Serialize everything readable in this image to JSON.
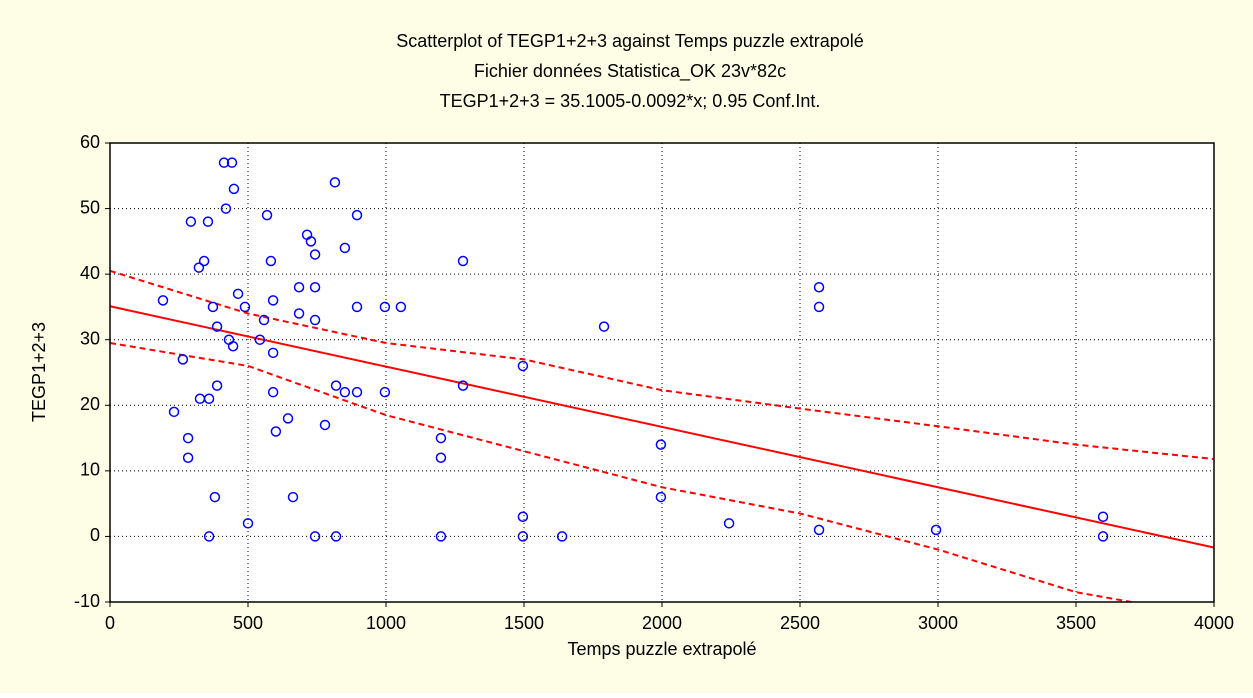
{
  "chart_data": {
    "type": "scatter",
    "title": "Scatterplot of TEGP1+2+3 against Temps puzzle extrapolé",
    "subtitle": "Fichier données Statistica_OK 23v*82c",
    "annotation": "TEGP1+2+3 = 35.1005-0.0092*x; 0.95 Conf.Int.",
    "x_label": "Temps puzzle extrapolé",
    "y_label": "TEGP1+2+3",
    "color": "#0000ff",
    "x": [
      192,
      232,
      264,
      283,
      283,
      293,
      322,
      326,
      341,
      355,
      359,
      359,
      373,
      380,
      388,
      388,
      413,
      420,
      431,
      442,
      446,
      449,
      464,
      489,
      500,
      543,
      558,
      569,
      583,
      591,
      591,
      591,
      601,
      645,
      663,
      685,
      685,
      714,
      728,
      743,
      743,
      743,
      743,
      779,
      815,
      819,
      819,
      851,
      851,
      895,
      895,
      895,
      996,
      996,
      1054,
      1199,
      1199,
      1199,
      1279,
      1279,
      1496,
      1496,
      1496,
      1638,
      1790,
      1996,
      1996,
      2243,
      2569,
      2569,
      2569,
      2993,
      3598,
      3598
    ],
    "values": [
      36,
      19,
      27,
      15,
      12,
      48,
      41,
      21,
      42,
      48,
      0,
      21,
      35,
      6,
      32,
      23,
      57,
      50,
      30,
      57,
      29,
      53,
      37,
      35,
      2,
      30,
      33,
      49,
      42,
      36,
      28,
      22,
      16,
      18,
      6,
      38,
      34,
      46,
      45,
      43,
      38,
      33,
      0,
      17,
      54,
      23,
      0,
      22,
      44,
      49,
      35,
      22,
      35,
      22,
      35,
      15,
      12,
      0,
      42,
      23,
      26,
      3,
      0,
      0,
      32,
      14,
      6,
      2,
      38,
      35,
      1,
      1,
      3,
      0
    ],
    "lines": [
      {
        "color": "#ff0000",
        "dashed": false,
        "x": [
          0,
          4000
        ],
        "values": [
          35.1,
          -1.7
        ]
      },
      {
        "color": "#ff0000",
        "dashed": true,
        "x": [
          0,
          500,
          1000,
          1500,
          2000,
          2500,
          3000,
          3500,
          4000
        ],
        "values": [
          40.5,
          34,
          29.5,
          27,
          22.3,
          19.5,
          16.8,
          14,
          11.8
        ]
      },
      {
        "color": "#ff0000",
        "dashed": true,
        "x": [
          0,
          500,
          1000,
          1500,
          2000,
          2500,
          3000,
          3500,
          3700
        ],
        "values": [
          29.5,
          26,
          18.5,
          13,
          7.5,
          3.5,
          -2,
          -8.5,
          -10
        ]
      }
    ],
    "xlim": [
      0,
      4000
    ],
    "xticks": [
      0,
      500,
      1000,
      1500,
      2000,
      2500,
      3000,
      3500,
      4000
    ],
    "ylim": [
      -10,
      60
    ],
    "yticks": [
      -10,
      0,
      10,
      20,
      30,
      40,
      50,
      60
    ],
    "grid": true
  }
}
